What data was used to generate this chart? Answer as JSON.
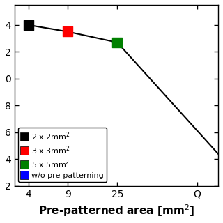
{
  "x_values": [
    4,
    9,
    25,
    200
  ],
  "y_values": [
    3.4,
    3.35,
    3.27,
    2.44
  ],
  "point_colors": [
    "black",
    "red",
    "green"
  ],
  "point_x": [
    4,
    9,
    25
  ],
  "point_y": [
    3.4,
    3.35,
    3.27
  ],
  "marker_size": 100,
  "xlabel": "Pre-patterned area [mm$^2$]",
  "xlabel_fontsize": 11,
  "xlabel_fontweight": "bold",
  "ylim": [
    2.2,
    3.55
  ],
  "xlim_min": 3.0,
  "xlim_max": 200,
  "xtick_positions": [
    4,
    9,
    25
  ],
  "xtick_labels": [
    "4",
    "9",
    "25"
  ],
  "ytick_positions": [
    2.2,
    2.4,
    2.6,
    2.8,
    3.0,
    3.2,
    3.4
  ],
  "ytick_labels": [
    "2",
    "4",
    "6",
    "8",
    "0",
    "2",
    "4"
  ],
  "legend_labels": [
    "2 x 2mm$^2$",
    "3 x 3mm$^2$",
    "5 x 5mm$^2$",
    "w/o pre-patterning"
  ],
  "legend_colors": [
    "black",
    "red",
    "green",
    "blue"
  ],
  "line_color": "black",
  "line_width": 1.5,
  "background": "white",
  "extra_x_label": "Q",
  "extra_x_pos": 130
}
